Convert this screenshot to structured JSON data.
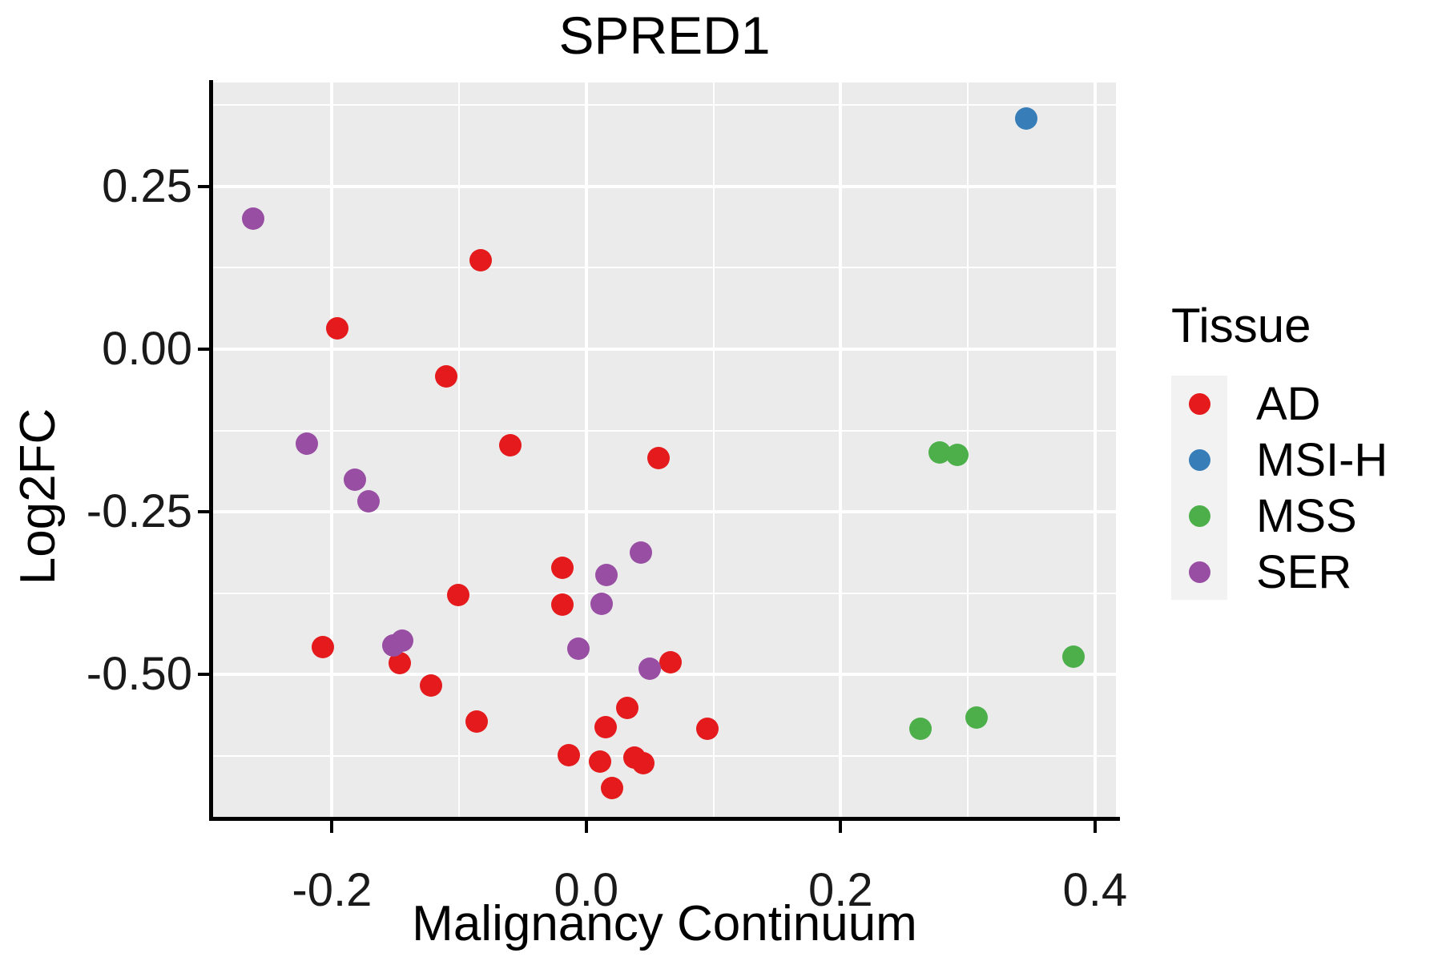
{
  "title": "SPRED1",
  "chart_data": {
    "type": "scatter",
    "title": "SPRED1",
    "xlabel": "Malignancy Continuum",
    "ylabel": "Log2FC",
    "xlim": [
      -0.2935,
      0.4165
    ],
    "ylim": [
      -0.7208,
      0.4096
    ],
    "x_major_ticks": [
      -0.2,
      0.0,
      0.2,
      0.4
    ],
    "x_tick_labels": [
      "-0.2",
      "0.0",
      "0.2",
      "0.4"
    ],
    "x_minor_ticks": [
      -0.1,
      0.1,
      0.3
    ],
    "y_major_ticks": [
      0.25,
      0.0,
      -0.25,
      -0.5
    ],
    "y_tick_labels": [
      "0.25",
      "0.00",
      "-0.25",
      "-0.50"
    ],
    "y_minor_ticks": [
      0.375,
      0.125,
      -0.125,
      -0.375,
      -0.625
    ],
    "grid": true,
    "panel_background": "#EBEBEB",
    "gridline_color": "#FFFFFF",
    "legend_position": "right",
    "legend_title": "Tissue",
    "series": [
      {
        "name": "AD",
        "color": "#E41A1C",
        "points": [
          [
            -0.196,
            0.032
          ],
          [
            -0.083,
            0.137
          ],
          [
            -0.11,
            -0.042
          ],
          [
            -0.06,
            -0.148
          ],
          [
            0.057,
            -0.167
          ],
          [
            -0.101,
            -0.378
          ],
          [
            -0.019,
            -0.336
          ],
          [
            -0.019,
            -0.392
          ],
          [
            -0.207,
            -0.458
          ],
          [
            -0.147,
            -0.482
          ],
          [
            -0.122,
            -0.517
          ],
          [
            -0.086,
            -0.572
          ],
          [
            0.066,
            -0.481
          ],
          [
            0.032,
            -0.551
          ],
          [
            0.015,
            -0.581
          ],
          [
            -0.014,
            -0.624
          ],
          [
            0.011,
            -0.633
          ],
          [
            0.038,
            -0.627
          ],
          [
            0.045,
            -0.636
          ],
          [
            0.02,
            -0.674
          ],
          [
            0.095,
            -0.583
          ]
        ]
      },
      {
        "name": "MSI-H",
        "color": "#377EB8",
        "points": [
          [
            0.346,
            0.354
          ]
        ]
      },
      {
        "name": "MSS",
        "color": "#4DAF4A",
        "points": [
          [
            0.278,
            -0.159
          ],
          [
            0.292,
            -0.162
          ],
          [
            0.383,
            -0.472
          ],
          [
            0.263,
            -0.583
          ],
          [
            0.307,
            -0.566
          ]
        ]
      },
      {
        "name": "SER",
        "color": "#984EA3",
        "points": [
          [
            -0.262,
            0.2
          ],
          [
            -0.22,
            -0.145
          ],
          [
            -0.182,
            -0.2
          ],
          [
            -0.171,
            -0.234
          ],
          [
            0.043,
            -0.312
          ],
          [
            0.016,
            -0.347
          ],
          [
            0.012,
            -0.391
          ],
          [
            -0.152,
            -0.455
          ],
          [
            -0.145,
            -0.448
          ],
          [
            -0.006,
            -0.46
          ],
          [
            0.05,
            -0.491
          ]
        ]
      }
    ]
  },
  "legend": {
    "title": "Tissue",
    "items": [
      {
        "label": "AD",
        "color": "#E41A1C"
      },
      {
        "label": "MSI-H",
        "color": "#377EB8"
      },
      {
        "label": "MSS",
        "color": "#4DAF4A"
      },
      {
        "label": "SER",
        "color": "#984EA3"
      }
    ]
  }
}
